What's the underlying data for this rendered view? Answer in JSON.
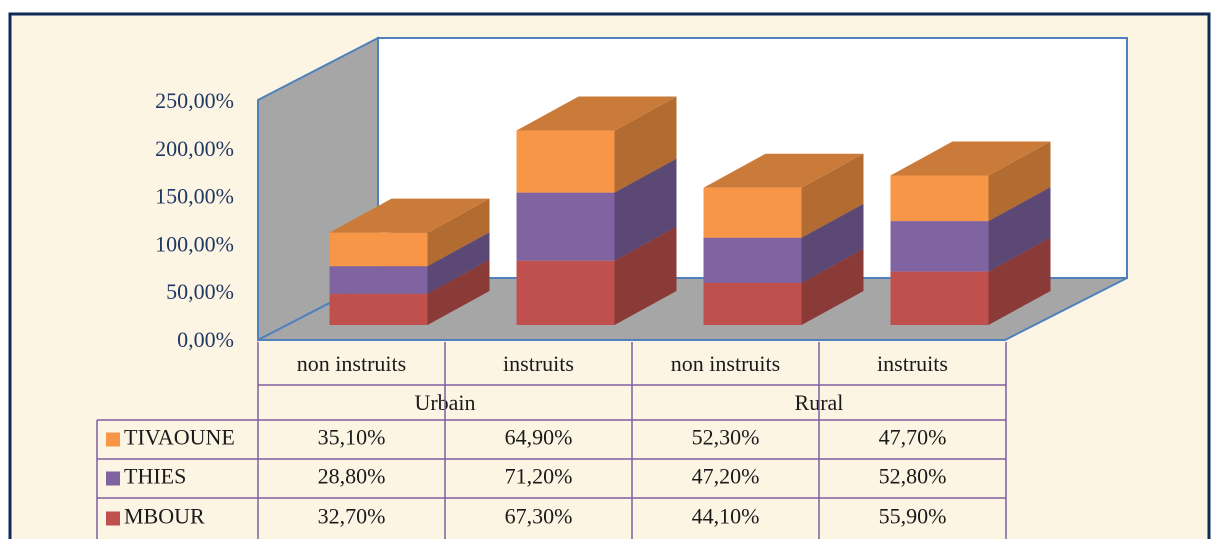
{
  "chart_data": {
    "type": "stacked-bar-3d",
    "categories": [
      "non instruits",
      "instruits",
      "non instruits",
      "instruits"
    ],
    "groups": [
      "Urbain",
      "Rural"
    ],
    "ylim": [
      0,
      250
    ],
    "yticks": [
      {
        "value": 0,
        "label": "0,00%"
      },
      {
        "value": 50,
        "label": "50,00%"
      },
      {
        "value": 100,
        "label": "100,00%"
      },
      {
        "value": 150,
        "label": "150,00%"
      },
      {
        "value": 200,
        "label": "200,00%"
      },
      {
        "value": 250,
        "label": "250,00%"
      }
    ],
    "series": [
      {
        "name": "TIVAOUNE",
        "color": "#f79646",
        "values": [
          35.1,
          64.9,
          52.3,
          47.7
        ],
        "value_labels": [
          "35,10%",
          "64,90%",
          "52,30%",
          "47,70%"
        ]
      },
      {
        "name": "THIES",
        "color": "#8064a2",
        "values": [
          28.8,
          71.2,
          47.2,
          52.8
        ],
        "value_labels": [
          "28,80%",
          "71,20%",
          "47,20%",
          "52,80%"
        ]
      },
      {
        "name": "MBOUR",
        "color": "#c0504d",
        "values": [
          32.7,
          67.3,
          44.1,
          55.9
        ],
        "value_labels": [
          "32,70%",
          "67,30%",
          "44,10%",
          "55,90%"
        ]
      }
    ]
  }
}
